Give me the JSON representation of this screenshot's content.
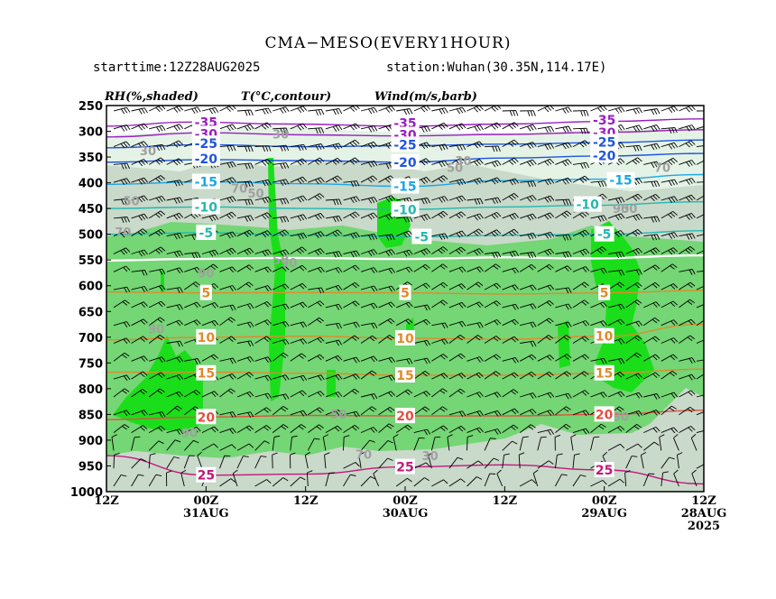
{
  "title": "CMA−MESO(EVERY1HOUR)",
  "subtitle_left": "starttime:12Z28AUG2025",
  "subtitle_right": "station:Wuhan(30.35N,114.17E)",
  "chart_data": {
    "type": "heatmap",
    "panel_labels": [
      "RH(%,shaded)",
      "T(°C,contour)",
      "Wind(m/s,barb)"
    ],
    "y_axis": {
      "levels_hPa": [
        250,
        300,
        350,
        400,
        450,
        500,
        550,
        600,
        650,
        700,
        750,
        800,
        850,
        900,
        950,
        1000
      ],
      "ylim": [
        1000,
        250
      ]
    },
    "x_axis": {
      "direction": "reversed",
      "ticks": [
        {
          "hours": 72,
          "label": "12Z",
          "sub": "",
          "sub2": ""
        },
        {
          "hours": 60,
          "label": "00Z",
          "sub": "31AUG",
          "sub2": ""
        },
        {
          "hours": 48,
          "label": "12Z",
          "sub": "",
          "sub2": ""
        },
        {
          "hours": 36,
          "label": "00Z",
          "sub": "30AUG",
          "sub2": ""
        },
        {
          "hours": 24,
          "label": "12Z",
          "sub": "",
          "sub2": ""
        },
        {
          "hours": 12,
          "label": "00Z",
          "sub": "29AUG",
          "sub2": ""
        },
        {
          "hours": 0,
          "label": "12Z",
          "sub": "28AUG",
          "sub2": "2025"
        }
      ]
    },
    "colors": {
      "dry": "#ffffff",
      "rh30": "#e4f3e6",
      "rh50": "#c9d9ca",
      "rh70": "#74d674",
      "rh90": "#1bde1b",
      "t_cold": "#9a1ec0",
      "t_mid": "#1d55e0",
      "t_cool": "#1aa7e6",
      "t_teal": "#22b8b0",
      "t_zero": "#ffffff",
      "t_warm": "#e08a2a",
      "t_hot": "#e05040",
      "t_25": "#c0187a"
    },
    "temperature_contours": [
      {
        "value": -35,
        "label": "-35",
        "color": "#9a1ec0",
        "points": [
          [
            72,
            290
          ],
          [
            62,
            282
          ],
          [
            50,
            286
          ],
          [
            36,
            290
          ],
          [
            24,
            286
          ],
          [
            12,
            281
          ],
          [
            0,
            276
          ]
        ],
        "labels": [
          [
            60,
            282
          ],
          [
            36,
            284
          ],
          [
            12,
            278
          ]
        ]
      },
      {
        "value": -30,
        "label": "-30",
        "color": "#9a1ec0",
        "points": [
          [
            72,
            311
          ],
          [
            60,
            303
          ],
          [
            48,
            307
          ],
          [
            36,
            309
          ],
          [
            24,
            306
          ],
          [
            12,
            302
          ],
          [
            0,
            297
          ]
        ],
        "labels": [
          [
            60,
            305
          ],
          [
            36,
            307
          ],
          [
            12,
            303
          ]
        ]
      },
      {
        "value": -25,
        "label": "-25",
        "color": "#1d55e0",
        "points": [
          [
            72,
            332
          ],
          [
            60,
            326
          ],
          [
            48,
            330
          ],
          [
            36,
            328
          ],
          [
            24,
            325
          ],
          [
            12,
            322
          ],
          [
            0,
            317
          ]
        ],
        "labels": [
          [
            60,
            324
          ],
          [
            36,
            326
          ],
          [
            12,
            321
          ]
        ]
      },
      {
        "value": -20,
        "label": "-20",
        "color": "#1d55e0",
        "points": [
          [
            72,
            360
          ],
          [
            60,
            355
          ],
          [
            48,
            357
          ],
          [
            36,
            360
          ],
          [
            24,
            352
          ],
          [
            12,
            348
          ],
          [
            0,
            343
          ]
        ],
        "labels": [
          [
            60,
            353
          ],
          [
            36,
            360
          ],
          [
            12,
            347
          ]
        ]
      },
      {
        "value": -15,
        "label": "-15",
        "color": "#1aa7e6",
        "points": [
          [
            72,
            403
          ],
          [
            60,
            398
          ],
          [
            48,
            402
          ],
          [
            36,
            407
          ],
          [
            24,
            396
          ],
          [
            12,
            393
          ],
          [
            0,
            384
          ]
        ],
        "labels": [
          [
            60,
            398
          ],
          [
            36,
            407
          ],
          [
            10,
            395
          ]
        ]
      },
      {
        "value": -10,
        "label": "-10",
        "color": "#22b8b0",
        "points": [
          [
            72,
            450
          ],
          [
            60,
            447
          ],
          [
            48,
            450
          ],
          [
            36,
            452
          ],
          [
            24,
            447
          ],
          [
            14,
            444
          ],
          [
            0,
            437
          ]
        ],
        "labels": [
          [
            60,
            447
          ],
          [
            36,
            452
          ],
          [
            14,
            442
          ]
        ]
      },
      {
        "value": -5,
        "label": "-5",
        "color": "#22b8b0",
        "points": [
          [
            72,
            500
          ],
          [
            60,
            497
          ],
          [
            48,
            502
          ],
          [
            34,
            505
          ],
          [
            24,
            502
          ],
          [
            12,
            500
          ],
          [
            0,
            493
          ]
        ],
        "labels": [
          [
            60,
            497
          ],
          [
            34,
            505
          ],
          [
            12,
            500
          ]
        ]
      },
      {
        "value": 0,
        "label": "0",
        "color": "#ffffff",
        "points": [
          [
            72,
            551
          ],
          [
            62,
            548
          ],
          [
            50,
            546
          ],
          [
            36,
            548
          ],
          [
            24,
            545
          ],
          [
            14,
            547
          ],
          [
            0,
            541
          ]
        ],
        "labels": []
      },
      {
        "value": 5,
        "label": "5",
        "color": "#e08a2a",
        "points": [
          [
            72,
            612
          ],
          [
            60,
            614
          ],
          [
            48,
            613
          ],
          [
            36,
            614
          ],
          [
            24,
            616
          ],
          [
            12,
            614
          ],
          [
            0,
            609
          ]
        ],
        "labels": [
          [
            60,
            614
          ],
          [
            36,
            614
          ],
          [
            12,
            614
          ]
        ]
      },
      {
        "value": 10,
        "label": "10",
        "color": "#e08a2a",
        "points": [
          [
            72,
            705
          ],
          [
            60,
            700
          ],
          [
            48,
            698
          ],
          [
            36,
            702
          ],
          [
            24,
            704
          ],
          [
            12,
            698
          ],
          [
            0,
            675
          ]
        ],
        "labels": [
          [
            60,
            700
          ],
          [
            36,
            702
          ],
          [
            12,
            698
          ]
        ]
      },
      {
        "value": 15,
        "label": "15",
        "color": "#e08a2a",
        "points": [
          [
            72,
            768
          ],
          [
            60,
            768
          ],
          [
            48,
            770
          ],
          [
            36,
            774
          ],
          [
            24,
            774
          ],
          [
            12,
            770
          ],
          [
            0,
            762
          ]
        ],
        "labels": [
          [
            60,
            770
          ],
          [
            36,
            774
          ],
          [
            12,
            770
          ]
        ]
      },
      {
        "value": 20,
        "label": "20",
        "color": "#e05040",
        "points": [
          [
            72,
            860
          ],
          [
            60,
            855
          ],
          [
            48,
            852
          ],
          [
            36,
            853
          ],
          [
            24,
            853
          ],
          [
            12,
            850
          ],
          [
            0,
            842
          ]
        ],
        "labels": [
          [
            60,
            855
          ],
          [
            36,
            853
          ],
          [
            12,
            850
          ]
        ]
      },
      {
        "value": 25,
        "label": "25",
        "color": "#c0187a",
        "points": [
          [
            72,
            930
          ],
          [
            60,
            968
          ],
          [
            48,
            966
          ],
          [
            36,
            952
          ],
          [
            24,
            948
          ],
          [
            12,
            958
          ],
          [
            0,
            985
          ]
        ],
        "labels": [
          [
            60,
            968
          ],
          [
            36,
            952
          ],
          [
            12,
            958
          ]
        ]
      }
    ],
    "rh_labels": [
      {
        "text": "30",
        "x": 67,
        "y": 338
      },
      {
        "text": "50",
        "x": 69,
        "y": 435
      },
      {
        "text": "70",
        "x": 70,
        "y": 495
      },
      {
        "text": "90",
        "x": 60,
        "y": 575
      },
      {
        "text": "90",
        "x": 66,
        "y": 684
      },
      {
        "text": "90",
        "x": 62,
        "y": 885
      },
      {
        "text": "30",
        "x": 51,
        "y": 305
      },
      {
        "text": "50",
        "x": 54,
        "y": 420
      },
      {
        "text": "70",
        "x": 56,
        "y": 410
      },
      {
        "text": "50",
        "x": 51,
        "y": 550
      },
      {
        "text": "90",
        "x": 50,
        "y": 555
      },
      {
        "text": "50",
        "x": 44,
        "y": 849
      },
      {
        "text": "70",
        "x": 41,
        "y": 927
      },
      {
        "text": "30",
        "x": 33,
        "y": 930
      },
      {
        "text": "30",
        "x": 29,
        "y": 357
      },
      {
        "text": "50",
        "x": 30,
        "y": 370
      },
      {
        "text": "70",
        "x": 15,
        "y": 450
      },
      {
        "text": "90",
        "x": 10,
        "y": 450
      },
      {
        "text": "50",
        "x": 9,
        "y": 450
      },
      {
        "text": "90",
        "x": 10,
        "y": 854
      },
      {
        "text": "70",
        "x": 5,
        "y": 370
      },
      {
        "text": "70",
        "x": 12,
        "y": 690
      }
    ]
  }
}
